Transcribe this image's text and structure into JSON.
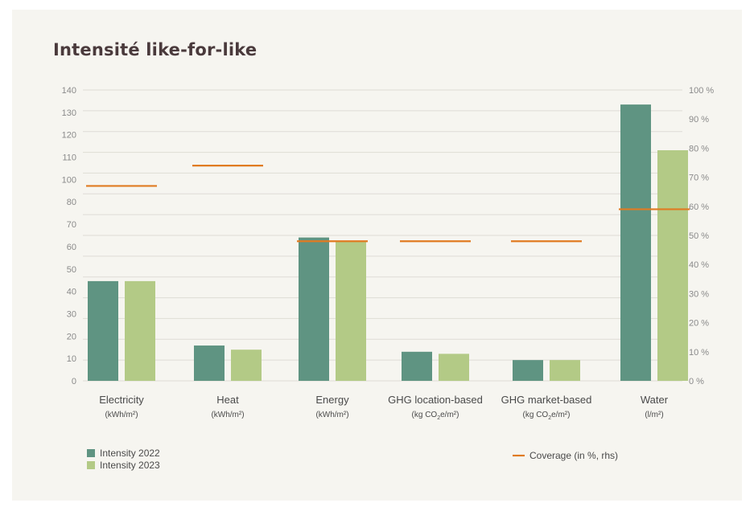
{
  "chart_data": {
    "type": "bar",
    "title": "Intensité like-for-like",
    "categories": [
      "Electricity",
      "Heat",
      "Energy",
      "GHG location-based",
      "GHG market-based",
      "Water"
    ],
    "units": [
      [
        "(kWh/m²)"
      ],
      [
        "(kWh/m²)"
      ],
      [
        "(kWh/m²)"
      ],
      [
        "(kg CO",
        "2",
        "e/m²)"
      ],
      [
        "(kg CO",
        "2",
        "e/m²)"
      ],
      [
        "(l/m²)"
      ]
    ],
    "series": [
      {
        "name": "Intensity 2022",
        "axis": "left",
        "color": "#5f9482",
        "values": [
          48,
          17,
          69,
          14,
          10,
          133
        ]
      },
      {
        "name": "Intensity 2023",
        "axis": "left",
        "color": "#b3ca86",
        "values": [
          48,
          15,
          67,
          13,
          10,
          111
        ]
      },
      {
        "name": "Coverage (in %, rhs)",
        "axis": "right",
        "type": "line-marker",
        "color": "#e07b22",
        "values": [
          67,
          74,
          48,
          48,
          48,
          59
        ]
      }
    ],
    "left_axis": {
      "min": 0,
      "max": 140,
      "ticks": [
        0,
        10,
        20,
        30,
        40,
        50,
        60,
        70,
        80,
        100,
        110,
        120,
        130,
        140
      ]
    },
    "right_axis": {
      "min": 0,
      "max": 100,
      "ticks": [
        "0 %",
        "10 %",
        "20 %",
        "30 %",
        "40 %",
        "50 %",
        "60 %",
        "70 %",
        "80 %",
        "90 %",
        "100 %"
      ]
    },
    "grid": true,
    "legend": {
      "position": "bottom"
    }
  }
}
